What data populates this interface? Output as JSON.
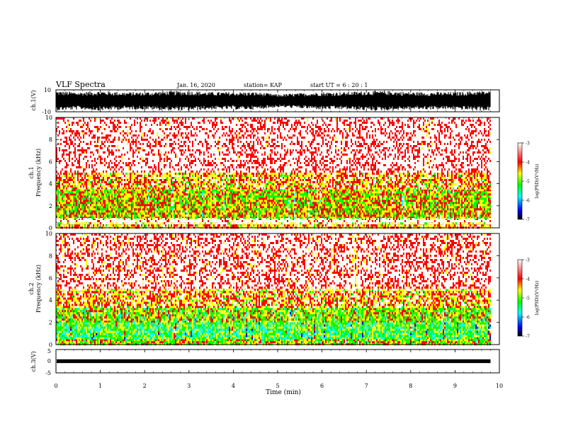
{
  "header": {
    "title": "VLF Spectra",
    "date": "Jan. 16, 2020",
    "station": "station= KAP",
    "start": "start UT =  6 : 20 : 1"
  },
  "colors": {
    "colormap": [
      "#000000",
      "#0000ff",
      "#00ffff",
      "#00ff00",
      "#ffff00",
      "#ff0000",
      "#ffffff"
    ],
    "spectrogram_base": "#ff3b30",
    "waveform": "#000000"
  },
  "chart_data": [
    {
      "type": "line",
      "name": "ch1-waveform",
      "ylabel": "ch.1(V)",
      "ylim": [
        -10,
        10
      ],
      "yticks": [
        "10",
        "-10"
      ],
      "x": [
        0,
        0.5,
        1.0,
        1.5,
        2.0,
        2.5,
        3.0,
        3.5,
        4.0,
        4.5,
        5.0,
        5.5,
        6.0,
        6.5,
        7.0,
        7.5,
        8.0,
        8.5,
        9.0,
        9.5,
        9.8
      ],
      "amplitude_v": [
        9,
        8,
        9,
        8,
        8,
        9,
        9,
        8,
        8,
        8,
        6,
        7,
        8,
        8,
        9,
        9,
        8,
        8,
        8,
        9,
        9
      ]
    },
    {
      "type": "heatmap",
      "name": "ch1-spectrogram",
      "ylabel": "ch.1\nFrequency (kHz)",
      "ylim": [
        0,
        10
      ],
      "yticks": [
        "0",
        "2",
        "4",
        "6",
        "8",
        "10"
      ],
      "colorbar_label": "log(PSD)(V²/Hz)",
      "colorbar_range": [
        -7,
        -3
      ],
      "colorbar_ticks": [
        "-3",
        "-4",
        "-5",
        "-6",
        "-7"
      ],
      "freq_bands_khz": [
        {
          "band": [
            0,
            0.5
          ],
          "log_psd": -4.0
        },
        {
          "band": [
            0.5,
            0.9
          ],
          "log_psd": -3.0
        },
        {
          "band": [
            0.9,
            3.5
          ],
          "log_psd": -4.4
        },
        {
          "band": [
            3.5,
            5.0
          ],
          "log_psd": -4.0
        },
        {
          "band": [
            5.0,
            10.0
          ],
          "log_psd": -3.3
        }
      ]
    },
    {
      "type": "heatmap",
      "name": "ch2-spectrogram",
      "ylabel": "ch.2\nFrequency (kHz)",
      "ylim": [
        0,
        10
      ],
      "yticks": [
        "0",
        "2",
        "4",
        "6",
        "8",
        "10"
      ],
      "colorbar_label": "log(PSD)(V²/Hz)",
      "colorbar_range": [
        -7,
        -3
      ],
      "colorbar_ticks": [
        "-3",
        "-4",
        "-5",
        "-6",
        "-7"
      ],
      "freq_bands_khz": [
        {
          "band": [
            0,
            0.5
          ],
          "log_psd": -4.5
        },
        {
          "band": [
            0.5,
            2.0
          ],
          "log_psd": -5.0
        },
        {
          "band": [
            2.0,
            3.3
          ],
          "log_psd": -4.6
        },
        {
          "band": [
            3.3,
            5.0
          ],
          "log_psd": -4.0
        },
        {
          "band": [
            5.0,
            10.0
          ],
          "log_psd": -3.4
        }
      ]
    },
    {
      "type": "line",
      "name": "ch3-waveform",
      "ylabel": "ch.3(V)",
      "ylim": [
        -5,
        5
      ],
      "yticks": [
        "5",
        "0",
        "-5"
      ],
      "x": [
        0,
        9.8
      ],
      "amplitude_v": [
        0.8,
        0.8
      ]
    }
  ],
  "x_axis": {
    "label": "Time (min)",
    "range": [
      0,
      10
    ],
    "ticks": [
      "0",
      "1",
      "2",
      "3",
      "4",
      "5",
      "6",
      "7",
      "8",
      "9",
      "10"
    ],
    "data_end": 9.8
  }
}
